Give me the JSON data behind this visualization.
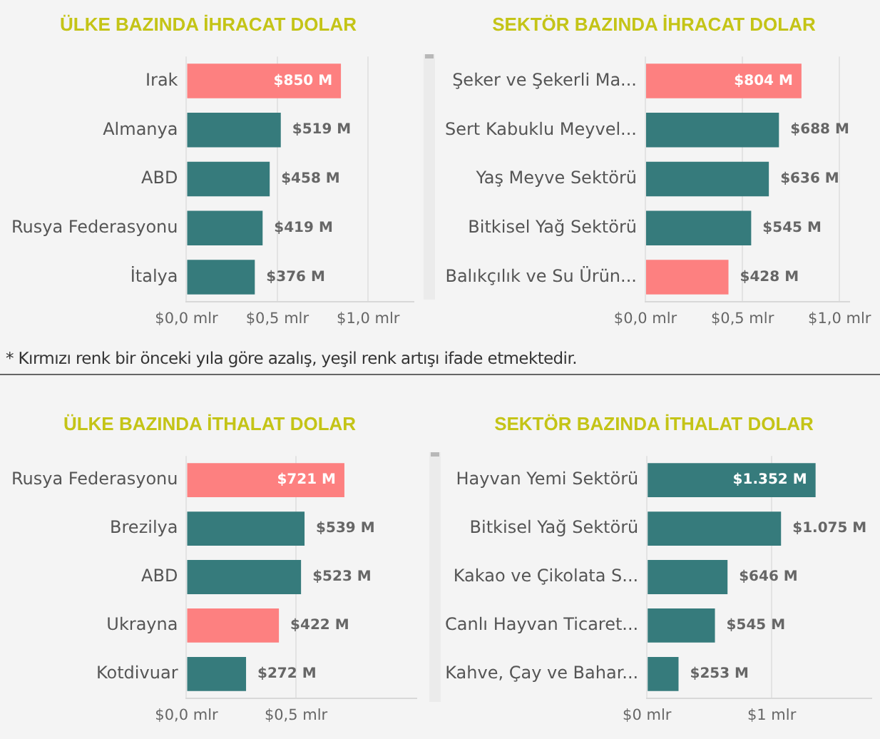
{
  "chart_data": [
    {
      "type": "bar",
      "orientation": "horizontal",
      "title": "ÜLKE BAZINDA İHRACAT DOLAR",
      "categories": [
        "Irak",
        "Almanya",
        "ABD",
        "Rusya Federasyonu",
        "İtalya"
      ],
      "values": [
        0.85,
        0.519,
        0.458,
        0.419,
        0.376
      ],
      "colors": [
        "#fd8080",
        "#367b7c",
        "#367b7c",
        "#367b7c",
        "#367b7c"
      ],
      "xlim": [
        0,
        1.25
      ],
      "xticks": [
        {
          "value": 0,
          "label": "$0,0 mlr"
        },
        {
          "value": 0.5,
          "label": "$0,5 mlr"
        },
        {
          "value": 1,
          "label": "$1,0 mlr"
        }
      ],
      "grid": "x",
      "legend": false,
      "annotations": [
        {
          "text": "$850 M",
          "x": 0.85,
          "y": "Irak"
        },
        {
          "text": "$519 M",
          "x": 0.519,
          "y": "Almanya"
        },
        {
          "text": "$458 M",
          "x": 0.458,
          "y": "ABD"
        },
        {
          "text": "$419 M",
          "x": 0.419,
          "y": "Rusya Federasyonu"
        },
        {
          "text": "$376 M",
          "x": 0.376,
          "y": "İtalya"
        },
        "* Kırmızı renk bir önceki yıla göre azalış, yeşil renk artışı ifade etmektedir."
      ]
    },
    {
      "type": "bar",
      "orientation": "horizontal",
      "title": "SEKTÖR BAZINDA İHRACAT DOLAR",
      "categories": [
        "Şeker ve Şekerli Ma...",
        "Sert Kabuklu Meyvel...",
        "Yaş Meyve Sektörü",
        "Bitkisel Yağ Sektörü",
        "Balıkçılık ve Su Ürün..."
      ],
      "values": [
        0.804,
        0.688,
        0.636,
        0.545,
        0.428
      ],
      "colors": [
        "#fd8080",
        "#367b7c",
        "#367b7c",
        "#367b7c",
        "#fd8080"
      ],
      "xlim": [
        0,
        1.05
      ],
      "xticks": [
        {
          "value": 0,
          "label": "$0,0 mlr"
        },
        {
          "value": 0.5,
          "label": "$0,5 mlr"
        },
        {
          "value": 1,
          "label": "$1,0 mlr"
        }
      ],
      "grid": "x",
      "legend": false,
      "annotations": [
        {
          "text": "$804 M",
          "x": 0.804,
          "y": "Şeker ve Şekerli Ma..."
        },
        {
          "text": "$688 M",
          "x": 0.688,
          "y": "Sert Kabuklu Meyvel..."
        },
        {
          "text": "$636 M",
          "x": 0.636,
          "y": "Yaş Meyve Sektörü"
        },
        {
          "text": "$545 M",
          "x": 0.545,
          "y": "Bitkisel Yağ Sektörü"
        },
        {
          "text": "$428 M",
          "x": 0.428,
          "y": "Balıkçılık ve Su Ürün..."
        }
      ]
    },
    {
      "type": "bar",
      "orientation": "horizontal",
      "title": "ÜLKE BAZINDA İTHALAT DOLAR",
      "categories": [
        "Rusya Federasyonu",
        "Brezilya",
        "ABD",
        "Ukrayna",
        "Kotdivuar"
      ],
      "values": [
        0.721,
        0.539,
        0.523,
        0.422,
        0.272
      ],
      "colors": [
        "#fd8080",
        "#367b7c",
        "#367b7c",
        "#fd8080",
        "#367b7c"
      ],
      "xlim": [
        0,
        1.05
      ],
      "xticks": [
        {
          "value": 0,
          "label": "$0,0 mlr"
        },
        {
          "value": 0.5,
          "label": "$0,5 mlr"
        }
      ],
      "grid": "x",
      "legend": false,
      "annotations": [
        {
          "text": "$721 M",
          "x": 0.721,
          "y": "Rusya Federasyonu"
        },
        {
          "text": "$539 M",
          "x": 0.539,
          "y": "Brezilya"
        },
        {
          "text": "$523 M",
          "x": 0.523,
          "y": "ABD"
        },
        {
          "text": "$422 M",
          "x": 0.422,
          "y": "Ukrayna"
        },
        {
          "text": "$272 M",
          "x": 0.272,
          "y": "Kotdivuar"
        }
      ]
    },
    {
      "type": "bar",
      "orientation": "horizontal",
      "title": "SEKTÖR BAZINDA İTHALAT DOLAR",
      "categories": [
        "Hayvan Yemi Sektörü",
        "Bitkisel Yağ Sektörü",
        "Kakao ve Çikolata S...",
        "Canlı Hayvan Ticaret...",
        "Kahve, Çay ve Bahar..."
      ],
      "values": [
        1.352,
        1.075,
        0.646,
        0.545,
        0.253
      ],
      "colors": [
        "#367b7c",
        "#367b7c",
        "#367b7c",
        "#367b7c",
        "#367b7c"
      ],
      "xlim": [
        0,
        1.8
      ],
      "xticks": [
        {
          "value": 0,
          "label": "$0 mlr"
        },
        {
          "value": 1,
          "label": "$1 mlr"
        }
      ],
      "grid": "x",
      "legend": false,
      "annotations": [
        {
          "text": "$1.352 M",
          "x": 1.352,
          "y": "Hayvan Yemi Sektörü"
        },
        {
          "text": "$1.075 M",
          "x": 1.075,
          "y": "Bitkisel Yağ Sektörü"
        },
        {
          "text": "$646 M",
          "x": 0.646,
          "y": "Kakao ve Çikolata S..."
        },
        {
          "text": "$545 M",
          "x": 0.545,
          "y": "Canlı Hayvan Ticaret..."
        },
        {
          "text": "$253 M",
          "x": 0.253,
          "y": "Kahve, Çay ve Bahar..."
        }
      ]
    }
  ]
}
